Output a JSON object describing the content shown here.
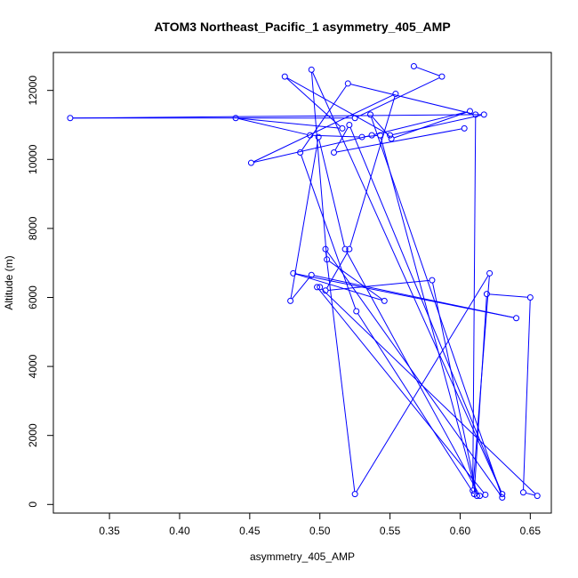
{
  "chart_data": {
    "type": "line",
    "title": "ATOM3 Northeast_Pacific_1 asymmetry_405_AMP",
    "xlabel": "asymmetry_405_AMP",
    "ylabel": "Altitude (m)",
    "xlim": [
      0.31,
      0.665
    ],
    "ylim": [
      -250,
      13100
    ],
    "xticks": [
      "0.35",
      "0.40",
      "0.45",
      "0.50",
      "0.55",
      "0.60",
      "0.65"
    ],
    "yticks": [
      "0",
      "2000",
      "4000",
      "6000",
      "8000",
      "10000",
      "12000"
    ],
    "grid": false,
    "markers": "open-circle",
    "colors": {
      "series": "#0000ff",
      "axis": "#000000"
    },
    "series": [
      {
        "x": [
          0.567,
          0.587,
          0.525,
          0.322,
          0.617,
          0.55,
          0.475,
          0.516,
          0.44,
          0.493,
          0.53,
          0.543,
          0.612,
          0.58,
          0.504,
          0.521,
          0.554,
          0.451,
          0.537,
          0.607,
          0.551,
          0.536,
          0.63,
          0.504,
          0.525,
          0.621,
          0.609,
          0.611,
          0.52,
          0.486,
          0.526,
          0.61,
          0.619,
          0.65,
          0.645,
          0.655,
          0.5,
          0.498,
          0.618,
          0.614,
          0.518,
          0.499,
          0.479,
          0.494,
          0.64,
          0.481,
          0.546,
          0.505,
          0.494,
          0.63,
          0.521,
          0.51,
          0.603
        ],
        "y": [
          12700,
          12400,
          11200,
          11200,
          11300,
          10700,
          12400,
          10900,
          11200,
          10700,
          10650,
          10700,
          250,
          6500,
          6200,
          7400,
          11900,
          9900,
          10700,
          11400,
          10600,
          11300,
          200,
          7400,
          300,
          6700,
          400,
          11300,
          12200,
          10200,
          5600,
          300,
          6100,
          6000,
          350,
          250,
          6300,
          6300,
          280,
          250,
          7400,
          10650,
          5900,
          6650,
          5400,
          6700,
          5900,
          7100,
          12600,
          300,
          11000,
          10200,
          10900
        ]
      }
    ]
  }
}
